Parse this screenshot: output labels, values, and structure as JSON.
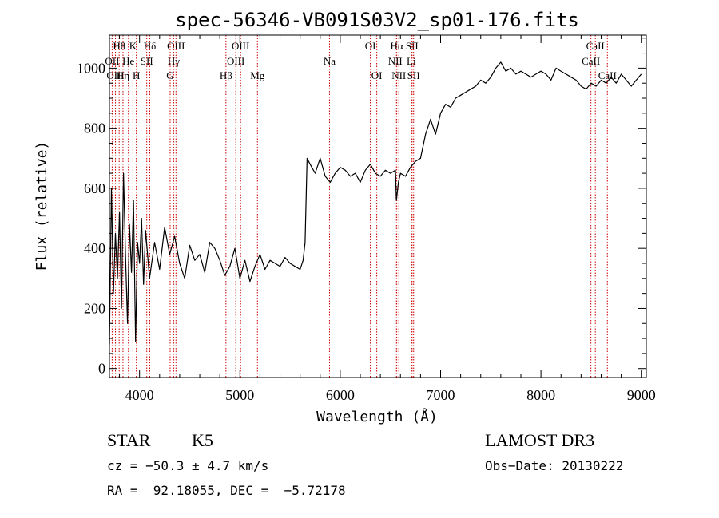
{
  "chart_data": {
    "type": "line",
    "title": "spec-56346-VB091S03V2_sp01-176.fits",
    "xlabel": "Wavelength (Å)",
    "ylabel": "Flux (relative)",
    "xlim": [
      3700,
      9050
    ],
    "ylim": [
      -30,
      1110
    ],
    "xticks": [
      4000,
      5000,
      6000,
      7000,
      8000,
      9000
    ],
    "yticks": [
      0,
      200,
      400,
      600,
      800,
      1000
    ],
    "grid": false,
    "line_color": "#000000",
    "marker_color": "#cc0000",
    "series": [
      {
        "x": [
          3700,
          3720,
          3740,
          3760,
          3780,
          3800,
          3820,
          3840,
          3860,
          3880,
          3900,
          3920,
          3940,
          3960,
          3980,
          4000,
          4020,
          4040,
          4060,
          4080,
          4100,
          4150,
          4200,
          4250,
          4300,
          4350,
          4400,
          4450,
          4500,
          4550,
          4600,
          4650,
          4700,
          4750,
          4800,
          4850,
          4900,
          4950,
          5000,
          5050,
          5100,
          5150,
          5200,
          5250,
          5300,
          5350,
          5400,
          5450,
          5500,
          5550,
          5600,
          5630,
          5650,
          5670,
          5700,
          5750,
          5800,
          5850,
          5900,
          5950,
          6000,
          6050,
          6100,
          6150,
          6200,
          6250,
          6300,
          6350,
          6400,
          6450,
          6500,
          6550,
          6560,
          6580,
          6600,
          6650,
          6700,
          6750,
          6800,
          6850,
          6900,
          6950,
          7000,
          7050,
          7100,
          7150,
          7200,
          7250,
          7300,
          7350,
          7400,
          7450,
          7500,
          7550,
          7600,
          7650,
          7700,
          7750,
          7800,
          7850,
          7900,
          7950,
          8000,
          8050,
          8100,
          8150,
          8200,
          8250,
          8300,
          8350,
          8400,
          8450,
          8500,
          8550,
          8600,
          8650,
          8700,
          8750,
          8800,
          8850,
          8900,
          8950,
          9000
        ],
        "y": [
          80,
          600,
          250,
          450,
          300,
          520,
          200,
          650,
          380,
          150,
          480,
          320,
          560,
          90,
          420,
          350,
          500,
          280,
          460,
          380,
          300,
          420,
          330,
          470,
          380,
          440,
          350,
          300,
          410,
          360,
          380,
          320,
          420,
          400,
          360,
          310,
          340,
          400,
          300,
          360,
          290,
          340,
          380,
          330,
          360,
          350,
          340,
          370,
          350,
          340,
          330,
          360,
          420,
          700,
          680,
          650,
          700,
          640,
          620,
          650,
          670,
          660,
          640,
          650,
          620,
          660,
          680,
          650,
          640,
          660,
          650,
          660,
          560,
          620,
          650,
          640,
          670,
          690,
          700,
          780,
          830,
          780,
          850,
          880,
          870,
          900,
          910,
          920,
          930,
          940,
          960,
          950,
          970,
          1000,
          1020,
          990,
          1000,
          980,
          990,
          980,
          970,
          980,
          990,
          980,
          960,
          1000,
          990,
          980,
          970,
          960,
          940,
          930,
          950,
          940,
          960,
          950,
          970,
          950,
          980,
          960,
          940,
          960,
          980
        ]
      }
    ],
    "line_markers": [
      {
        "label": "Hθ",
        "x": 3797,
        "row": 1
      },
      {
        "label": "OII",
        "x": 3727,
        "row": 2
      },
      {
        "label": "OIII",
        "x": 3760,
        "row": 3
      },
      {
        "label": "K",
        "x": 3934,
        "row": 1
      },
      {
        "label": "He",
        "x": 3889,
        "row": 2
      },
      {
        "label": "Hη",
        "x": 3835,
        "row": 3
      },
      {
        "label": "Hδ",
        "x": 4102,
        "row": 1
      },
      {
        "label": "SII",
        "x": 4072,
        "row": 2
      },
      {
        "label": "H",
        "x": 3968,
        "row": 3
      },
      {
        "label": "OIII",
        "x": 4363,
        "row": 1
      },
      {
        "label": "Hγ",
        "x": 4340,
        "row": 2
      },
      {
        "label": "G",
        "x": 4305,
        "row": 3
      },
      {
        "label": "OIII",
        "x": 5007,
        "row": 1
      },
      {
        "label": "OIII",
        "x": 4959,
        "row": 2
      },
      {
        "label": "Hβ",
        "x": 4861,
        "row": 3
      },
      {
        "label": "Mg",
        "x": 5175,
        "row": 3
      },
      {
        "label": "Na",
        "x": 5893,
        "row": 2
      },
      {
        "label": "OI",
        "x": 6300,
        "row": 1
      },
      {
        "label": "OI",
        "x": 6364,
        "row": 3
      },
      {
        "label": "Hα",
        "x": 6563,
        "row": 1
      },
      {
        "label": "SII",
        "x": 6716,
        "row": 1
      },
      {
        "label": "NII",
        "x": 6548,
        "row": 2
      },
      {
        "label": "Li",
        "x": 6708,
        "row": 2
      },
      {
        "label": "NII",
        "x": 6584,
        "row": 3
      },
      {
        "label": "SII",
        "x": 6731,
        "row": 3
      },
      {
        "label": "CaII",
        "x": 8542,
        "row": 1
      },
      {
        "label": "CaII",
        "x": 8498,
        "row": 2
      },
      {
        "label": "CaII",
        "x": 8662,
        "row": 3
      }
    ]
  },
  "info": {
    "object_class": "STAR",
    "subclass": "K5",
    "survey": "LAMOST DR3",
    "cz": "cz = −50.3 ± 4.7 km/s",
    "obs_date": "Obs−Date: 20130222",
    "coords": "RA =  92.18055, DEC =  −5.72178"
  }
}
